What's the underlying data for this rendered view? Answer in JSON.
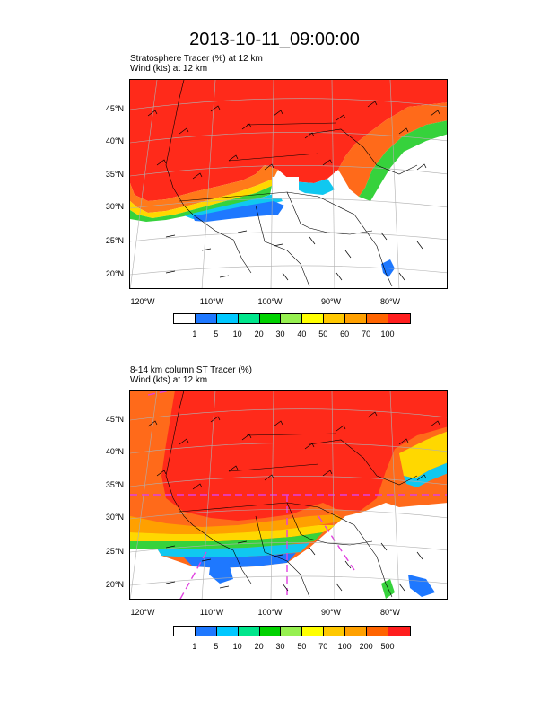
{
  "title": "2013-10-11_09:00:00",
  "panels": [
    {
      "subtitle_line1": "Stratosphere Tracer   (%)     at   12 km",
      "subtitle_line2": "Wind   (kts)     at   12 km",
      "lat_labels": [
        "45°N",
        "40°N",
        "35°N",
        "30°N",
        "25°N",
        "20°N"
      ],
      "lon_labels": [
        "120°W",
        "110°W",
        "100°W",
        "90°W",
        "80°W"
      ],
      "colorbar_labels": [
        "1",
        "5",
        "10",
        "20",
        "30",
        "40",
        "50",
        "60",
        "70",
        "100"
      ]
    },
    {
      "subtitle_line1": "8-14 km column ST Tracer   (%)",
      "subtitle_line2": "Wind   (kts)     at   12 km",
      "lat_labels": [
        "45°N",
        "40°N",
        "35°N",
        "30°N",
        "25°N",
        "20°N"
      ],
      "lon_labels": [
        "120°W",
        "110°W",
        "100°W",
        "90°W",
        "80°W"
      ],
      "colorbar_labels": [
        "1",
        "5",
        "10",
        "20",
        "30",
        "50",
        "70",
        "100",
        "200",
        "500"
      ]
    }
  ],
  "colorbar_colors": [
    "#ffffff",
    "#1e78ff",
    "#00c8ff",
    "#00e68c",
    "#00d200",
    "#96f050",
    "#ffff00",
    "#ffc800",
    "#ffa000",
    "#ff6400",
    "#ff1e1e"
  ],
  "colors": {
    "high": "#ff2a1a",
    "orange": "#ff6a1a",
    "light_orange": "#ffa000",
    "yellow": "#ffd800",
    "green": "#36d23c",
    "cyan": "#10c8f0",
    "blue": "#1e78ff",
    "dash": "#e040e0"
  }
}
